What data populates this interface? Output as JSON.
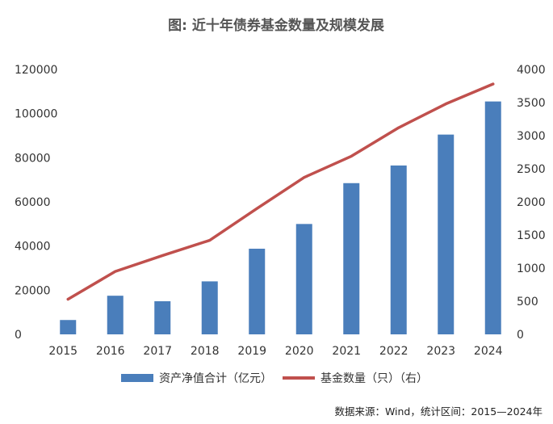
{
  "chart_data": {
    "type": "bar",
    "title": "图: 近十年债券基金数量及规模发展",
    "categories": [
      "2015",
      "2016",
      "2017",
      "2018",
      "2019",
      "2020",
      "2021",
      "2022",
      "2023",
      "2024"
    ],
    "series": [
      {
        "name": "资产净值合计（亿元）",
        "type": "bar",
        "axis": "left",
        "color": "#4a7ebb",
        "values": [
          6500,
          17500,
          15000,
          24000,
          38800,
          50000,
          68500,
          76500,
          90500,
          105500
        ]
      },
      {
        "name": "基金数量（只）（右）",
        "type": "line",
        "axis": "right",
        "color": "#c0504d",
        "values": [
          530,
          950,
          1190,
          1420,
          1900,
          2370,
          2690,
          3120,
          3480,
          3780
        ]
      }
    ],
    "yleft": {
      "ylim": [
        0,
        120000
      ],
      "ticks": [
        "0",
        "20000",
        "40000",
        "60000",
        "80000",
        "100000",
        "120000"
      ]
    },
    "yright": {
      "ylim": [
        0,
        4000
      ],
      "ticks": [
        "0",
        "500",
        "1000",
        "1500",
        "2000",
        "2500",
        "3000",
        "3500",
        "4000"
      ]
    },
    "legend": "bottom",
    "grid": false,
    "source": "数据来源：Wind，统计区间：2015—2024年"
  }
}
